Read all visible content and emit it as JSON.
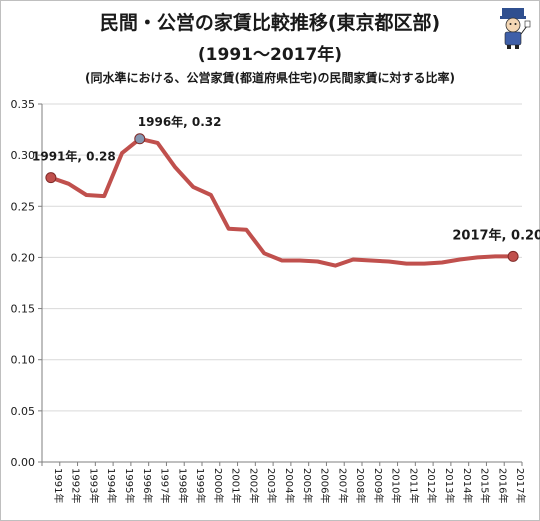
{
  "titles": {
    "main": "民間・公営の家賃比較推移(東京都区部)",
    "sub": "(1991～2017年)",
    "note": "(同水準における、公営家賃(都道府県住宅)の民間家賃に対する比率)"
  },
  "chart_data": {
    "type": "line",
    "title": "民間・公営の家賃比較推移(東京都区部)",
    "subtitle": "(1991～2017年)",
    "x": [
      "1991年",
      "1992年",
      "1993年",
      "1994年",
      "1995年",
      "1996年",
      "1997年",
      "1998年",
      "1999年",
      "2000年",
      "2001年",
      "2002年",
      "2003年",
      "2004年",
      "2005年",
      "2006年",
      "2007年",
      "2008年",
      "2009年",
      "2010年",
      "2011年",
      "2012年",
      "2013年",
      "2014年",
      "2015年",
      "2016年",
      "2017年"
    ],
    "series": [
      {
        "values": [
          0.278,
          0.272,
          0.261,
          0.26,
          0.302,
          0.316,
          0.312,
          0.288,
          0.269,
          0.261,
          0.228,
          0.227,
          0.204,
          0.197,
          0.197,
          0.196,
          0.192,
          0.198,
          0.197,
          0.196,
          0.194,
          0.194,
          0.195,
          0.198,
          0.2,
          0.201,
          0.201
        ]
      }
    ],
    "ylim": [
      0,
      0.35
    ],
    "yticks": [
      "0.00",
      "0.05",
      "0.10",
      "0.15",
      "0.20",
      "0.25",
      "0.30",
      "0.35"
    ],
    "grid": "horizontal",
    "annotations": [
      {
        "index": 0,
        "text": "1991年, 0.28"
      },
      {
        "index": 5,
        "text": "1996年, 0.32"
      },
      {
        "index": 26,
        "text": "2017年, 0.20"
      }
    ],
    "colors": {
      "line": "#c0504d",
      "marker": "#c0504d",
      "marker_peak": "#8496b0",
      "grid": "#d9d9d9",
      "axis": "#7f7f7f"
    }
  }
}
